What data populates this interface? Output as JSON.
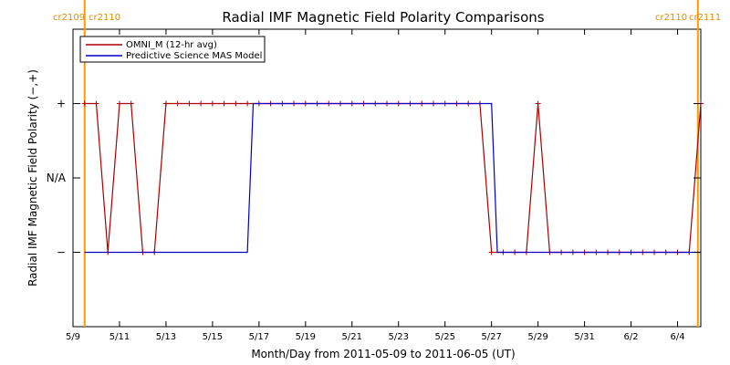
{
  "chart_data": {
    "type": "line",
    "title": "Radial IMF Magnetic Field Polarity Comparisons",
    "xlabel": "Month/Day from 2011-05-09 to 2011-06-05 (UT)",
    "ylabel": "Radial IMF Magnetic Field Polarity (−,+)",
    "x_unit": "date",
    "xlim": [
      "2011-05-09T00:00",
      "2011-06-05T00:00"
    ],
    "ylim": [
      -2,
      2
    ],
    "x_ticks": [
      {
        "date": "2011-05-09",
        "label": "5/9"
      },
      {
        "date": "2011-05-11",
        "label": "5/11"
      },
      {
        "date": "2011-05-13",
        "label": "5/13"
      },
      {
        "date": "2011-05-15",
        "label": "5/15"
      },
      {
        "date": "2011-05-17",
        "label": "5/17"
      },
      {
        "date": "2011-05-19",
        "label": "5/19"
      },
      {
        "date": "2011-05-21",
        "label": "5/21"
      },
      {
        "date": "2011-05-23",
        "label": "5/23"
      },
      {
        "date": "2011-05-25",
        "label": "5/25"
      },
      {
        "date": "2011-05-27",
        "label": "5/27"
      },
      {
        "date": "2011-05-29",
        "label": "5/29"
      },
      {
        "date": "2011-05-31",
        "label": "5/31"
      },
      {
        "date": "2011-06-02",
        "label": "6/2"
      },
      {
        "date": "2011-06-04",
        "label": "6/4"
      }
    ],
    "y_ticks": [
      {
        "value": 1,
        "label": "+"
      },
      {
        "value": 0,
        "label": "N/A"
      },
      {
        "value": -1,
        "label": "−"
      }
    ],
    "grid": false,
    "legend_position": "top-left",
    "series": [
      {
        "name": "OMNI_M (12-hr avg)",
        "color": "#aa0000",
        "marker": "+",
        "x": [
          "2011-05-09T12:00",
          "2011-05-10T00:00",
          "2011-05-10T12:00",
          "2011-05-11T00:00",
          "2011-05-11T12:00",
          "2011-05-12T00:00",
          "2011-05-12T12:00",
          "2011-05-13T00:00",
          "2011-05-13T12:00",
          "2011-05-14T00:00",
          "2011-05-14T12:00",
          "2011-05-15T00:00",
          "2011-05-15T12:00",
          "2011-05-16T00:00",
          "2011-05-16T12:00",
          "2011-05-17T00:00",
          "2011-05-17T12:00",
          "2011-05-18T00:00",
          "2011-05-18T12:00",
          "2011-05-19T00:00",
          "2011-05-19T12:00",
          "2011-05-20T00:00",
          "2011-05-20T12:00",
          "2011-05-21T00:00",
          "2011-05-21T12:00",
          "2011-05-22T00:00",
          "2011-05-22T12:00",
          "2011-05-23T00:00",
          "2011-05-23T12:00",
          "2011-05-24T00:00",
          "2011-05-24T12:00",
          "2011-05-25T00:00",
          "2011-05-25T12:00",
          "2011-05-26T00:00",
          "2011-05-26T12:00",
          "2011-05-27T00:00",
          "2011-05-27T12:00",
          "2011-05-28T00:00",
          "2011-05-28T12:00",
          "2011-05-29T00:00",
          "2011-05-29T12:00",
          "2011-05-30T00:00",
          "2011-05-30T12:00",
          "2011-05-31T00:00",
          "2011-05-31T12:00",
          "2011-06-01T00:00",
          "2011-06-01T12:00",
          "2011-06-02T00:00",
          "2011-06-02T12:00",
          "2011-06-03T00:00",
          "2011-06-03T12:00",
          "2011-06-04T00:00",
          "2011-06-04T12:00",
          "2011-06-05T00:00"
        ],
        "y": [
          1,
          1,
          -1,
          1,
          1,
          -1,
          -1,
          1,
          1,
          1,
          1,
          1,
          1,
          1,
          1,
          1,
          1,
          1,
          1,
          1,
          1,
          1,
          1,
          1,
          1,
          1,
          1,
          1,
          1,
          1,
          1,
          1,
          1,
          1,
          1,
          -1,
          -1,
          -1,
          -1,
          1,
          -1,
          -1,
          -1,
          -1,
          -1,
          -1,
          -1,
          -1,
          -1,
          -1,
          -1,
          -1,
          -1,
          1
        ]
      },
      {
        "name": "Predictive Science MAS Model",
        "color": "#0000cc",
        "marker": "none",
        "x": [
          "2011-05-09T12:00",
          "2011-05-16T12:00",
          "2011-05-16T18:00",
          "2011-05-27T00:00",
          "2011-05-27T06:00",
          "2011-06-05T00:00"
        ],
        "y": [
          -1,
          -1,
          1,
          1,
          -1,
          -1
        ]
      }
    ],
    "vertical_markers": [
      {
        "date": "2011-05-09T12:00",
        "color": "#ff9900"
      },
      {
        "date": "2011-06-04T21:00",
        "color": "#ff9900"
      }
    ],
    "corner_labels": {
      "left": [
        "cr2109",
        "cr2110"
      ],
      "right": [
        "cr2110",
        "cr2111"
      ]
    }
  }
}
